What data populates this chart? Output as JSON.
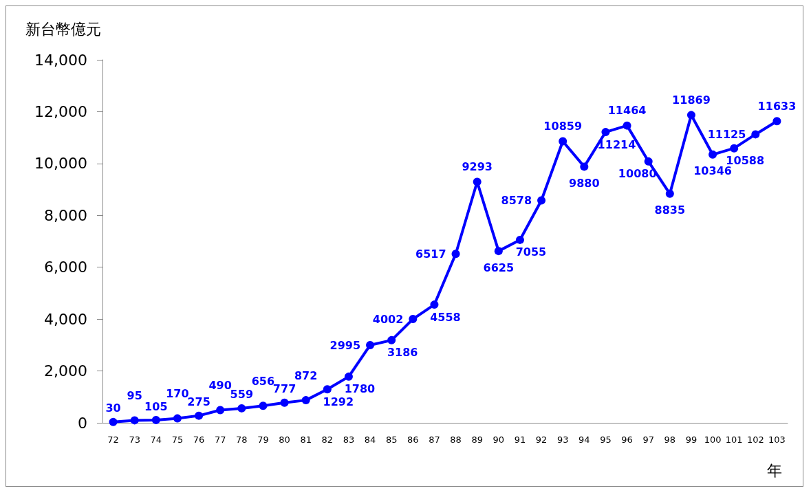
{
  "chart_data": {
    "type": "line",
    "ylabel": "新台幣億元",
    "xlabel": "年",
    "categories": [
      "72",
      "73",
      "74",
      "75",
      "76",
      "77",
      "78",
      "79",
      "80",
      "81",
      "82",
      "83",
      "84",
      "85",
      "86",
      "87",
      "88",
      "89",
      "90",
      "91",
      "92",
      "93",
      "94",
      "95",
      "96",
      "97",
      "98",
      "99",
      "100",
      "101",
      "102",
      "103"
    ],
    "series": [
      {
        "color": "#0000ff",
        "values": [
          30,
          95,
          105,
          170,
          275,
          490,
          559,
          656,
          777,
          872,
          1292,
          1780,
          2995,
          3186,
          4002,
          4558,
          6517,
          9293,
          6625,
          7055,
          8578,
          10859,
          9880,
          11214,
          11464,
          10080,
          8835,
          11869,
          10346,
          10588,
          11125,
          11633
        ]
      }
    ],
    "ylim": [
      0,
      14000
    ],
    "yticks": [
      0,
      {
        "value": 2000,
        "label": "2,000"
      },
      {
        "value": 4000,
        "label": "4,000"
      },
      {
        "value": 6000,
        "label": "6,000"
      },
      {
        "value": 8000,
        "label": "8,000"
      },
      {
        "value": 10000,
        "label": "10,000"
      },
      {
        "value": 12000,
        "label": "12,000"
      },
      {
        "value": 14000,
        "label": "14,000"
      }
    ],
    "grid": false,
    "marker": "circle",
    "line_style": "solid",
    "data_labels": true
  }
}
